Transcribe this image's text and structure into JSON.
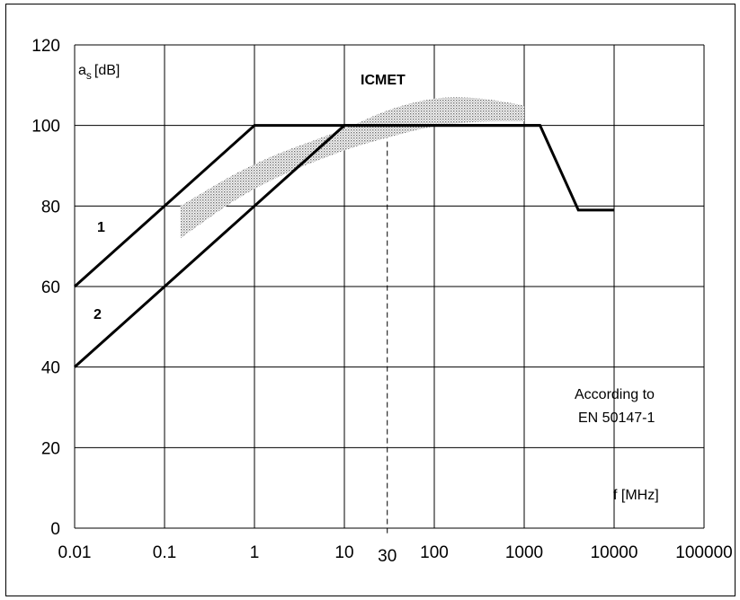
{
  "chart_data": {
    "type": "line",
    "x_scale": "log",
    "xlim": [
      0.01,
      100000
    ],
    "ylim": [
      0,
      120
    ],
    "grid": true,
    "x_ticks": [
      "0.01",
      "0.1",
      "1",
      "10",
      "100",
      "1000",
      "10000",
      "100000"
    ],
    "x_tick_values": [
      0.01,
      0.1,
      1,
      10,
      100,
      1000,
      10000,
      100000
    ],
    "y_ticks": [
      "0",
      "20",
      "40",
      "60",
      "80",
      "100",
      "120"
    ],
    "y_tick_values": [
      0,
      20,
      40,
      60,
      80,
      100,
      120
    ],
    "xlabel": "f [MHz]",
    "ylabel_main": "a",
    "ylabel_sub": "s",
    "ylabel_unit": "[dB]",
    "series": [
      {
        "name": "1",
        "x": [
          0.01,
          1,
          1500,
          4000,
          10000
        ],
        "y": [
          60,
          100,
          100,
          79,
          79
        ]
      },
      {
        "name": "2",
        "x": [
          0.01,
          10,
          1500
        ],
        "y": [
          40,
          100,
          100
        ]
      }
    ],
    "band": {
      "name": "ICMET",
      "x": [
        0.15,
        1,
        10,
        30,
        100,
        300,
        1000
      ],
      "upper": [
        80,
        91,
        99,
        104,
        107,
        107,
        105
      ],
      "lower": [
        72,
        85,
        94,
        97,
        100,
        101,
        101
      ]
    },
    "marker": {
      "x": 30,
      "label": "30"
    },
    "annotations": {
      "line1_label": "1",
      "line2_label": "2",
      "band_label": "ICMET",
      "note_line1": "According to",
      "note_line2": "EN 50147-1"
    },
    "colors": {
      "lines": "#000000",
      "grid": "#000000",
      "band": "#9a9a9a"
    }
  }
}
